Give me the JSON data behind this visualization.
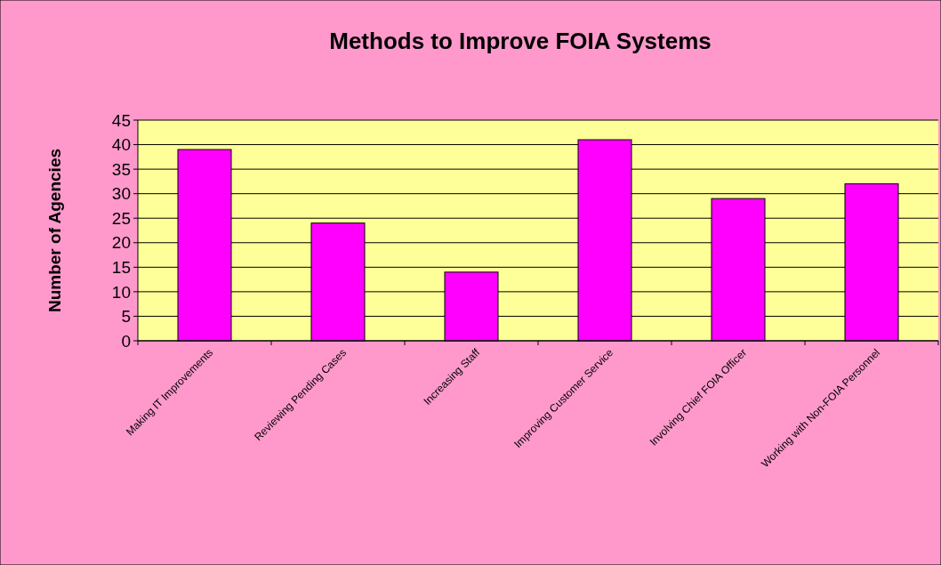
{
  "chart_data": {
    "type": "bar",
    "title": "Methods to Improve FOIA Systems",
    "ylabel": "Number of Agencies",
    "categories": [
      "Making IT Improvements",
      "Reviewing Pending Cases",
      "Increasing Staff",
      "Improving Customer Service",
      "Involving Chief FOIA Officer",
      "Working with Non-FOIA Personnel"
    ],
    "values": [
      39,
      24,
      14,
      41,
      29,
      32
    ],
    "color": "#ff00ff",
    "ylim": [
      0,
      45
    ],
    "yticks": [
      0,
      5,
      10,
      15,
      20,
      25,
      30,
      35,
      40,
      45
    ],
    "grid": "y"
  }
}
